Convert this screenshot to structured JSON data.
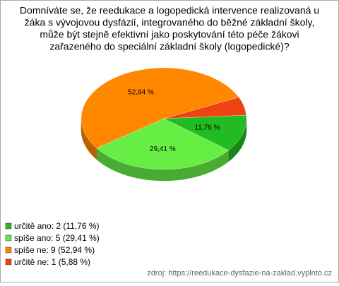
{
  "chart_data": {
    "type": "pie",
    "title": [
      "Domníváte se, že reedukace a logopedická intervence realizovaná u",
      "žáka s vývojovou dysfázií, integrovaného do běžné základní školy,",
      "může být stejně efektivní jako poskytování této péče žákovi",
      "zařazeného do speciální základní školy (logopedické)?"
    ],
    "categories": [
      "určitě ano: 2 (11,76 %)",
      "spíše ano: 5 (29,41 %)",
      "spíše ne: 9 (52,94 %)",
      "určitě ne: 1 (5,88 %)"
    ],
    "values": [
      11.76,
      29.41,
      52.94,
      5.88
    ],
    "value_labels": [
      "11,76 %",
      "29,41 %",
      "52,94 %",
      null
    ],
    "colors": [
      "#22bb22",
      "#66ee44",
      "#ff8800",
      "#ee4411"
    ],
    "source": "zdroj: https://reedukace-dysfazie-na-zaklad.vyplnto.cz"
  }
}
